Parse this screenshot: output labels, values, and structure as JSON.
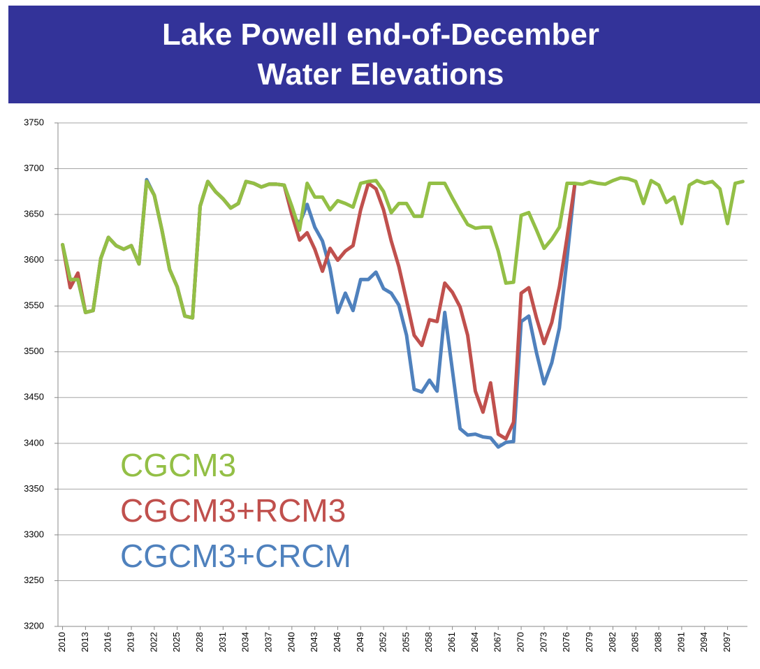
{
  "chart_data": {
    "type": "line",
    "title": "Lake Powell end-of-December\nWater Elevations",
    "x": [
      2010,
      2011,
      2012,
      2013,
      2014,
      2015,
      2016,
      2017,
      2018,
      2019,
      2020,
      2021,
      2022,
      2023,
      2024,
      2025,
      2026,
      2027,
      2028,
      2029,
      2030,
      2031,
      2032,
      2033,
      2034,
      2035,
      2036,
      2037,
      2038,
      2039,
      2040,
      2041,
      2042,
      2043,
      2044,
      2045,
      2046,
      2047,
      2048,
      2049,
      2050,
      2051,
      2052,
      2053,
      2054,
      2055,
      2056,
      2057,
      2058,
      2059,
      2060,
      2061,
      2062,
      2063,
      2064,
      2065,
      2066,
      2067,
      2068,
      2069,
      2070,
      2071,
      2072,
      2073,
      2074,
      2075,
      2076,
      2077,
      2078,
      2079,
      2080,
      2081,
      2082,
      2083,
      2084,
      2085,
      2086,
      2087,
      2088,
      2089,
      2090,
      2091,
      2092,
      2093,
      2094,
      2095,
      2096,
      2097,
      2098,
      2099
    ],
    "xlim": [
      2009.4,
      2099.6
    ],
    "xticks": [
      2010,
      2013,
      2016,
      2019,
      2022,
      2025,
      2028,
      2031,
      2034,
      2037,
      2040,
      2043,
      2046,
      2049,
      2052,
      2055,
      2058,
      2061,
      2064,
      2067,
      2070,
      2073,
      2076,
      2079,
      2082,
      2085,
      2088,
      2091,
      2094,
      2097
    ],
    "ylim": [
      3200,
      3750
    ],
    "yticks": [
      3200,
      3250,
      3300,
      3350,
      3400,
      3450,
      3500,
      3550,
      3600,
      3650,
      3700,
      3750
    ],
    "grid": true,
    "series": [
      {
        "name": "CGCM3+CRCM",
        "color": "#4f81bd",
        "values": [
          3617,
          3579,
          3579,
          3543,
          3545,
          3602,
          3625,
          3616,
          3612,
          3616,
          3596,
          3688,
          3671,
          3633,
          3590,
          3571,
          3539,
          3537,
          3659,
          3686,
          3675,
          3667,
          3657,
          3662,
          3686,
          3684,
          3680,
          3683,
          3683,
          3682,
          3650,
          3640,
          3661,
          3636,
          3621,
          3591,
          3543,
          3564,
          3545,
          3579,
          3579,
          3587,
          3569,
          3564,
          3551,
          3518,
          3459,
          3456,
          3469,
          3457,
          3543,
          3480,
          3416,
          3409,
          3410,
          3407,
          3406,
          3396,
          3401,
          3402,
          3533,
          3539,
          3499,
          3465,
          3488,
          3526,
          3602,
          3682,
          null,
          null,
          null,
          null,
          null,
          null,
          null,
          null,
          null,
          null,
          null,
          null,
          null,
          null,
          null,
          null,
          null,
          null,
          null,
          null,
          null,
          null
        ]
      },
      {
        "name": "CGCM3+RCM3",
        "color": "#c0504d",
        "values": [
          3617,
          3570,
          3586,
          3543,
          3545,
          3602,
          3625,
          3616,
          3612,
          3616,
          3596,
          3686,
          3671,
          3633,
          3590,
          3571,
          3539,
          3537,
          3659,
          3686,
          3675,
          3667,
          3657,
          3662,
          3686,
          3684,
          3680,
          3683,
          3683,
          3682,
          3650,
          3622,
          3630,
          3612,
          3588,
          3613,
          3600,
          3610,
          3616,
          3655,
          3684,
          3678,
          3655,
          3621,
          3593,
          3556,
          3518,
          3507,
          3535,
          3533,
          3575,
          3565,
          3549,
          3518,
          3457,
          3434,
          3466,
          3410,
          3405,
          3423,
          3564,
          3570,
          3537,
          3509,
          3532,
          3571,
          3625,
          3682,
          null,
          null,
          null,
          null,
          null,
          null,
          null,
          null,
          null,
          null,
          null,
          null,
          null,
          null,
          null,
          null,
          null,
          null,
          null,
          null,
          null,
          null
        ]
      },
      {
        "name": "CGCM3",
        "color": "#93bf46",
        "values": [
          3617,
          3579,
          3579,
          3543,
          3545,
          3602,
          3625,
          3616,
          3612,
          3616,
          3596,
          3686,
          3671,
          3633,
          3590,
          3571,
          3539,
          3537,
          3659,
          3686,
          3675,
          3667,
          3657,
          3662,
          3686,
          3684,
          3680,
          3683,
          3683,
          3682,
          3659,
          3633,
          3684,
          3669,
          3669,
          3655,
          3665,
          3662,
          3658,
          3684,
          3686,
          3687,
          3675,
          3652,
          3662,
          3662,
          3648,
          3648,
          3684,
          3684,
          3684,
          3668,
          3653,
          3639,
          3635,
          3636,
          3636,
          3610,
          3575,
          3576,
          3649,
          3652,
          3633,
          3613,
          3623,
          3636,
          3684,
          3684,
          3683,
          3686,
          3684,
          3683,
          3687,
          3690,
          3689,
          3686,
          3662,
          3687,
          3682,
          3663,
          3669,
          3640,
          3682,
          3687,
          3684,
          3686,
          3678,
          3640,
          3684,
          3686
        ]
      }
    ]
  }
}
